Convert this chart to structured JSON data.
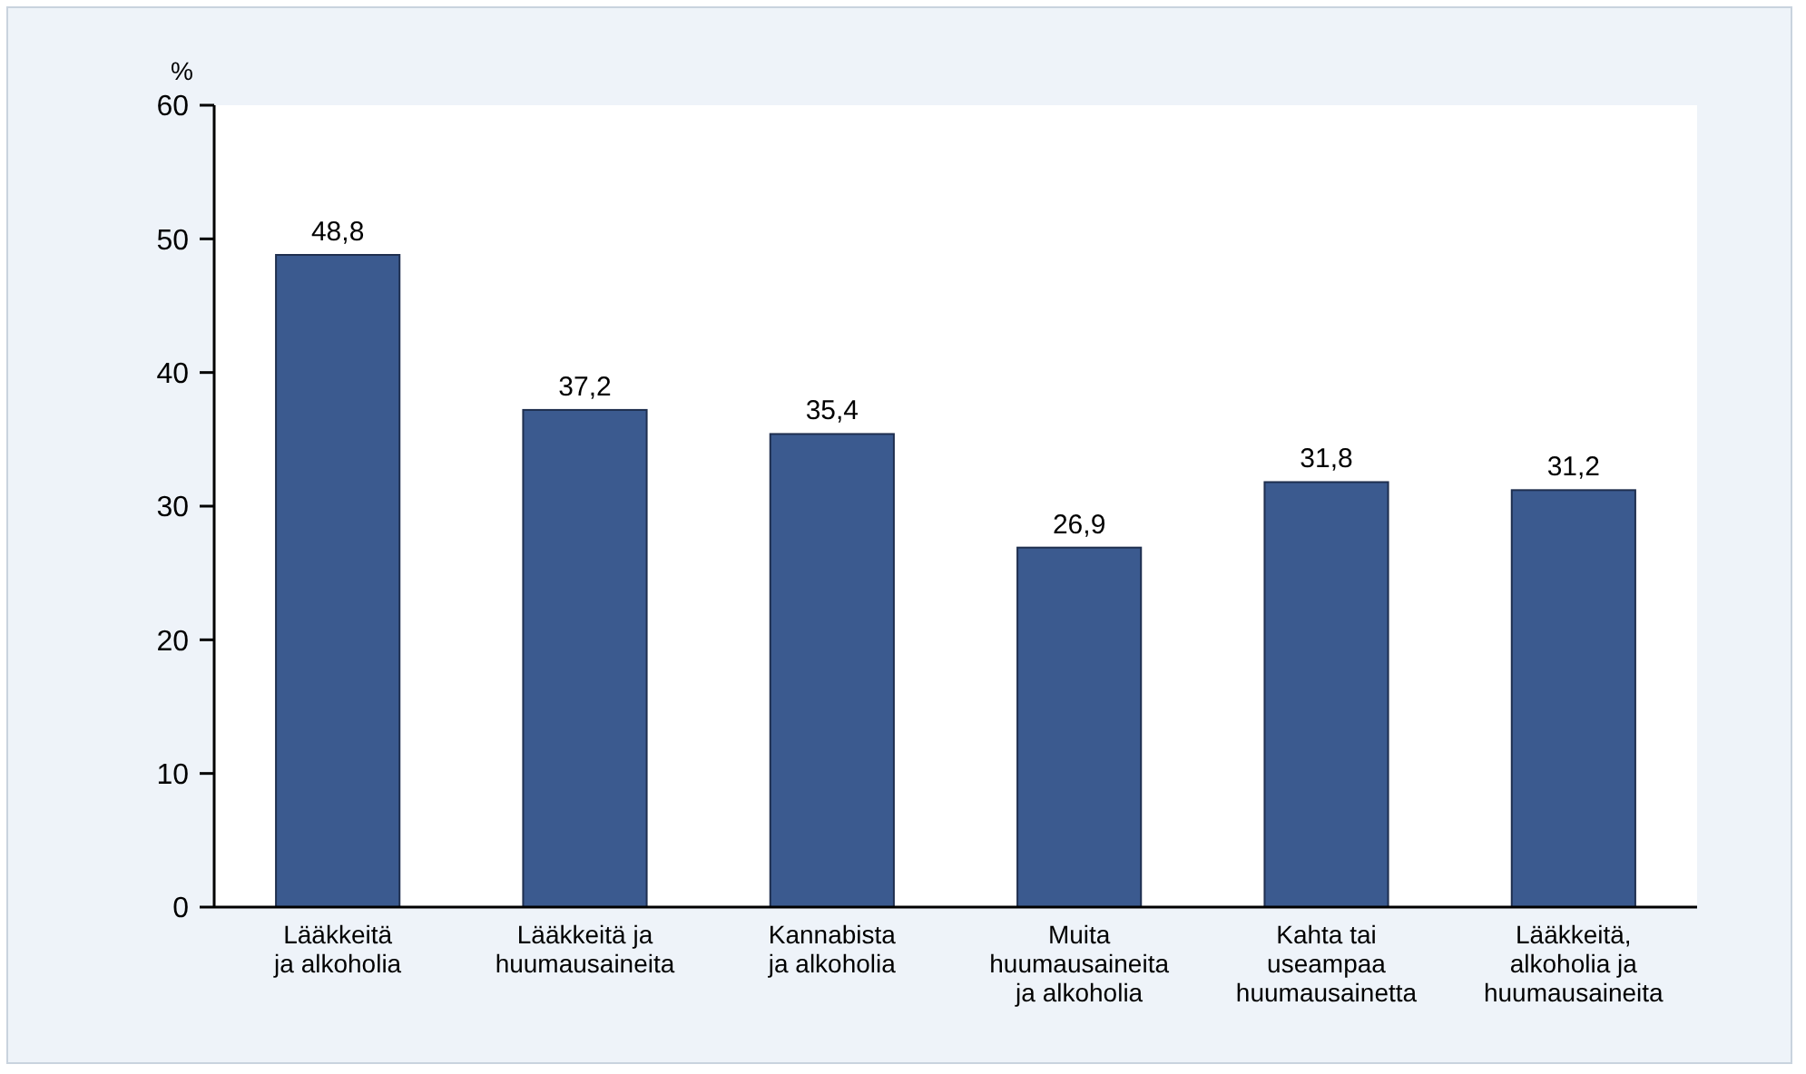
{
  "chart_data": {
    "type": "bar",
    "ylabel": "%",
    "categories": [
      "Lääkkeitä\nja alkoholia",
      "Lääkkeitä ja\nhuumausaineita",
      "Kannabista\nja alkoholia",
      "Muita\nhuumausaineita\nja alkoholia",
      "Kahta tai\nuseampaa\nhuumausainetta",
      "Lääkkeitä,\nalkoholia ja\nhuumausaineita"
    ],
    "values": [
      48.8,
      37.2,
      35.4,
      26.9,
      31.8,
      31.2
    ],
    "color": "#3b5a8f",
    "value_labels": [
      "48,8",
      "37,2",
      "35,4",
      "26,9",
      "31,8",
      "31,2"
    ],
    "ylim": [
      0,
      60
    ],
    "yticks": [
      0,
      10,
      20,
      30,
      40,
      50,
      60
    ],
    "grid": false
  }
}
